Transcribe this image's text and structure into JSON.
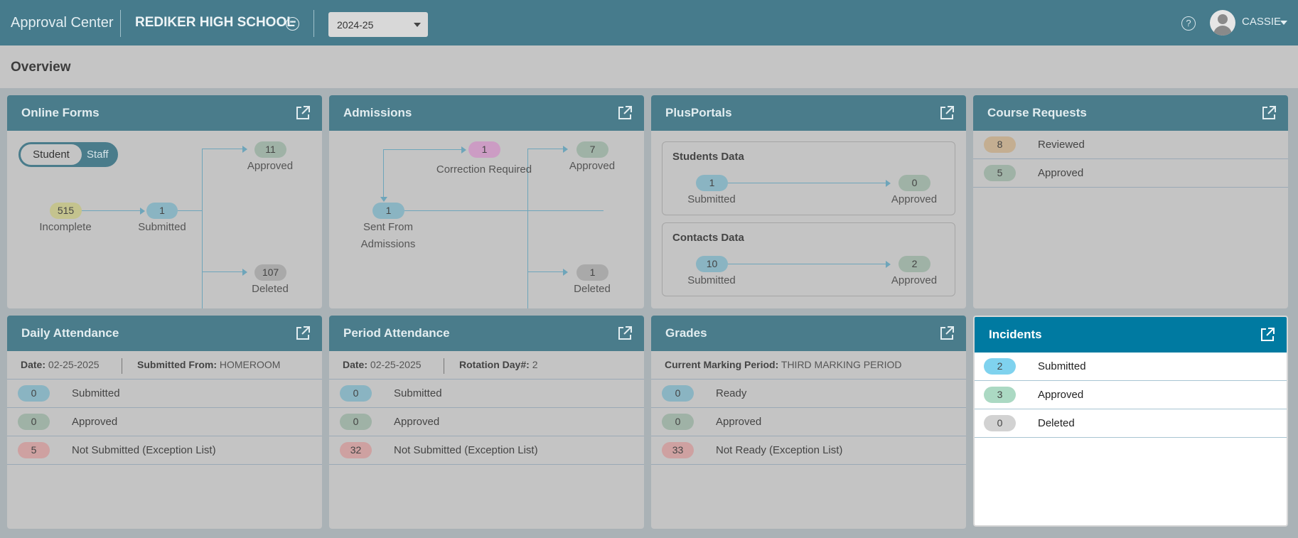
{
  "header": {
    "app_title": "Approval Center",
    "school": "REDIKER HIGH SCHOOL",
    "year": "2024-25",
    "user": "CASSIE",
    "help_icon": "help-circle-icon",
    "more_icon": "ellipsis-circle-icon"
  },
  "page": {
    "title": "Overview"
  },
  "online_forms": {
    "title": "Online Forms",
    "toggle": {
      "on": "Student",
      "off": "Staff"
    },
    "incomplete": {
      "count": "515",
      "label": "Incomplete"
    },
    "submitted": {
      "count": "1",
      "label": "Submitted"
    },
    "approved": {
      "count": "11",
      "label": "Approved"
    },
    "deleted": {
      "count": "107",
      "label": "Deleted"
    }
  },
  "admissions": {
    "title": "Admissions",
    "correction": {
      "count": "1",
      "label": "Correction Required"
    },
    "sent": {
      "count": "1",
      "label1": "Sent From",
      "label2": "Admissions"
    },
    "approved": {
      "count": "7",
      "label": "Approved"
    },
    "deleted": {
      "count": "1",
      "label": "Deleted"
    }
  },
  "plusportals": {
    "title": "PlusPortals",
    "students": {
      "title": "Students Data",
      "submitted": "1",
      "submitted_label": "Submitted",
      "approved": "0",
      "approved_label": "Approved"
    },
    "contacts": {
      "title": "Contacts Data",
      "submitted": "10",
      "submitted_label": "Submitted",
      "approved": "2",
      "approved_label": "Approved"
    }
  },
  "course_requests": {
    "title": "Course Requests",
    "rows": [
      {
        "count": "8",
        "label": "Reviewed"
      },
      {
        "count": "5",
        "label": "Approved"
      }
    ]
  },
  "daily_attendance": {
    "title": "Daily Attendance",
    "date_label": "Date:",
    "date": "02-25-2025",
    "from_label": "Submitted From:",
    "from": "HOMEROOM",
    "rows": [
      {
        "count": "0",
        "label": "Submitted"
      },
      {
        "count": "0",
        "label": "Approved"
      },
      {
        "count": "5",
        "label": "Not Submitted (Exception List)"
      }
    ]
  },
  "period_attendance": {
    "title": "Period Attendance",
    "date_label": "Date:",
    "date": "02-25-2025",
    "rotation_label": "Rotation Day#:",
    "rotation": "2",
    "rows": [
      {
        "count": "0",
        "label": "Submitted"
      },
      {
        "count": "0",
        "label": "Approved"
      },
      {
        "count": "32",
        "label": "Not Submitted (Exception List)"
      }
    ]
  },
  "grades": {
    "title": "Grades",
    "period_label": "Current Marking Period:",
    "period": "THIRD MARKING PERIOD",
    "rows": [
      {
        "count": "0",
        "label": "Ready"
      },
      {
        "count": "0",
        "label": "Approved"
      },
      {
        "count": "33",
        "label": "Not Ready (Exception List)"
      }
    ]
  },
  "incidents": {
    "title": "Incidents",
    "rows": [
      {
        "count": "2",
        "label": "Submitted"
      },
      {
        "count": "3",
        "label": "Approved"
      },
      {
        "count": "0",
        "label": "Deleted"
      }
    ]
  },
  "colors": {
    "header": "#467b8c",
    "card_header": "#4a7c8b",
    "active_header": "#007aa1"
  },
  "icons": {
    "external": "external-link-icon",
    "avatar": "user-avatar-icon"
  }
}
